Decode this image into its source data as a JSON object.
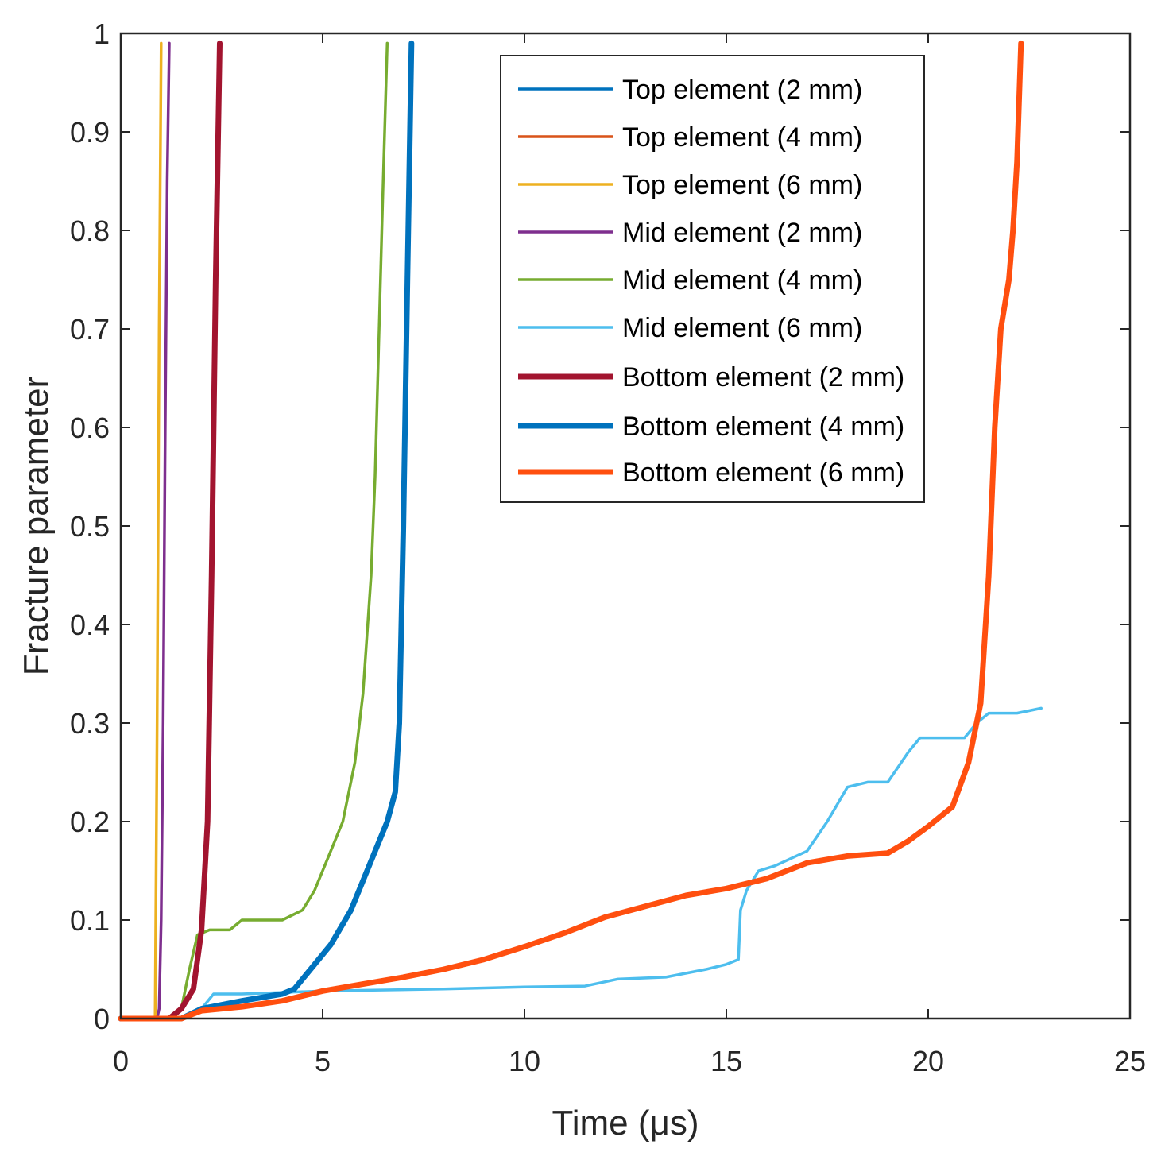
{
  "chart_data": {
    "type": "line",
    "title": "",
    "xlabel": "Time (μs)",
    "ylabel": "Fracture parameter",
    "xlim": [
      0,
      25
    ],
    "ylim": [
      0,
      1
    ],
    "x_ticks": [
      0,
      5,
      10,
      15,
      20,
      25
    ],
    "y_ticks": [
      0,
      0.1,
      0.2,
      0.3,
      0.4,
      0.5,
      0.6,
      0.7,
      0.8,
      0.9,
      1
    ],
    "x_tick_labels": [
      "0",
      "5",
      "10",
      "15",
      "20",
      "25"
    ],
    "y_tick_labels": [
      "0",
      "0.1",
      "0.2",
      "0.3",
      "0.4",
      "0.5",
      "0.6",
      "0.7",
      "0.8",
      "0.9",
      "1"
    ],
    "grid": false,
    "legend_position": "top-right",
    "series": [
      {
        "name": "Top element (2 mm)",
        "color": "#0072BD",
        "width": "thin",
        "x": [],
        "y": []
      },
      {
        "name": "Top element (4 mm)",
        "color": "#D95319",
        "width": "thin",
        "x": [],
        "y": []
      },
      {
        "name": "Top element (6 mm)",
        "color": "#EDB120",
        "width": "thin",
        "x": [
          0,
          0.85,
          0.9,
          0.95,
          1.0
        ],
        "y": [
          0,
          0,
          0.3,
          0.7,
          0.99
        ]
      },
      {
        "name": "Mid element (2 mm)",
        "color": "#7E2F8E",
        "width": "thin",
        "x": [
          0,
          0.9,
          0.95,
          1.0,
          1.05,
          1.1,
          1.15,
          1.2
        ],
        "y": [
          0,
          0,
          0.01,
          0.1,
          0.3,
          0.6,
          0.85,
          0.99
        ]
      },
      {
        "name": "Mid element (4 mm)",
        "color": "#77AC30",
        "width": "thin",
        "x": [
          0,
          1.2,
          1.5,
          1.7,
          1.9,
          2.2,
          2.7,
          3.0,
          4.0,
          4.5,
          4.8,
          5.2,
          5.5,
          5.8,
          6.0,
          6.2,
          6.3,
          6.4,
          6.5,
          6.6
        ],
        "y": [
          0,
          0,
          0.01,
          0.05,
          0.085,
          0.09,
          0.09,
          0.1,
          0.1,
          0.11,
          0.13,
          0.17,
          0.2,
          0.26,
          0.33,
          0.45,
          0.55,
          0.7,
          0.85,
          0.99
        ]
      },
      {
        "name": "Mid element (6 mm)",
        "color": "#4DBEEE",
        "width": "thin",
        "x": [
          0,
          1.5,
          2.0,
          2.3,
          3.0,
          5.0,
          8.0,
          10.0,
          11.5,
          12.3,
          13.5,
          14.5,
          15.0,
          15.3,
          15.35,
          15.5,
          15.8,
          16.2,
          17.0,
          17.5,
          18.0,
          18.5,
          19.0,
          19.5,
          19.8,
          20.5,
          20.9,
          21.2,
          21.5,
          22.2,
          22.8
        ],
        "y": [
          0,
          0,
          0.01,
          0.025,
          0.025,
          0.028,
          0.03,
          0.032,
          0.033,
          0.04,
          0.042,
          0.05,
          0.055,
          0.06,
          0.11,
          0.13,
          0.15,
          0.155,
          0.17,
          0.2,
          0.235,
          0.24,
          0.24,
          0.27,
          0.285,
          0.285,
          0.285,
          0.3,
          0.31,
          0.31,
          0.315
        ]
      },
      {
        "name": "Bottom element (2 mm)",
        "color": "#A2142F",
        "width": "thick",
        "x": [
          0,
          1.2,
          1.5,
          1.8,
          2.0,
          2.15,
          2.25,
          2.35,
          2.45
        ],
        "y": [
          0,
          0,
          0.01,
          0.03,
          0.09,
          0.2,
          0.45,
          0.75,
          0.99
        ]
      },
      {
        "name": "Bottom element (4 mm)",
        "color": "#0072BD",
        "width": "thick",
        "x": [
          0,
          1.5,
          2.0,
          3.0,
          4.0,
          4.3,
          4.7,
          5.2,
          5.7,
          6.2,
          6.6,
          6.8,
          6.9,
          7.0,
          7.1,
          7.2
        ],
        "y": [
          0,
          0,
          0.01,
          0.018,
          0.025,
          0.03,
          0.05,
          0.075,
          0.11,
          0.16,
          0.2,
          0.23,
          0.3,
          0.5,
          0.75,
          0.99
        ]
      },
      {
        "name": "Bottom element (6 mm)",
        "color": "#FF4F0F",
        "width": "thick",
        "x": [
          0,
          1.5,
          2.0,
          3.0,
          4.0,
          5.0,
          6.0,
          7.0,
          8.0,
          9.0,
          10.0,
          11.0,
          12.0,
          13.0,
          14.0,
          15.0,
          16.0,
          17.0,
          18.0,
          19.0,
          19.5,
          20.0,
          20.6,
          21.0,
          21.3,
          21.5,
          21.65,
          21.8,
          22.0,
          22.1,
          22.2,
          22.3
        ],
        "y": [
          0,
          0,
          0.008,
          0.012,
          0.018,
          0.028,
          0.035,
          0.042,
          0.05,
          0.06,
          0.073,
          0.087,
          0.103,
          0.114,
          0.125,
          0.132,
          0.142,
          0.158,
          0.165,
          0.168,
          0.18,
          0.195,
          0.215,
          0.26,
          0.32,
          0.45,
          0.6,
          0.7,
          0.75,
          0.8,
          0.87,
          0.99
        ]
      }
    ]
  }
}
